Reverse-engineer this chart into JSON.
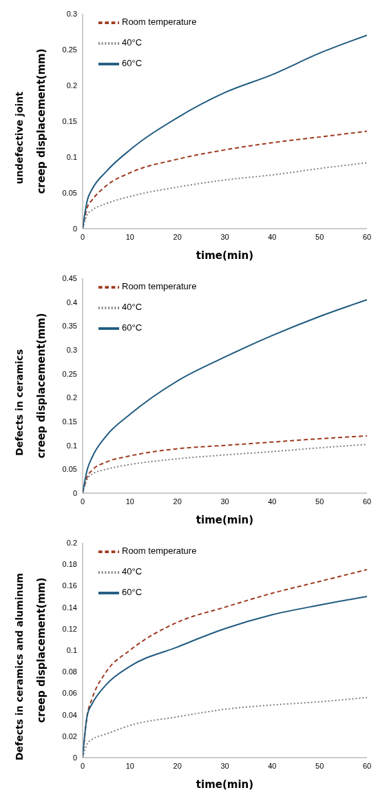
{
  "chart_data": [
    {
      "type": "line",
      "title": "undefective joint",
      "xlabel": "time(min)",
      "ylabel": "creep displacement(mm)",
      "x": [
        0,
        1,
        2,
        5,
        10,
        20,
        30,
        40,
        50,
        60
      ],
      "xlim": [
        0,
        60
      ],
      "xticks": [
        0,
        10,
        20,
        30,
        40,
        50,
        60
      ],
      "ylim": [
        0,
        0.3
      ],
      "yticks": [
        0,
        0.05,
        0.1,
        0.15,
        0.2,
        0.25,
        0.3
      ],
      "grid": false,
      "legend": "top left",
      "marker": "none",
      "series": [
        {
          "name": "Room temperature",
          "color": "#9e3a1f",
          "line_style": "dashed",
          "values": [
            0,
            0.03,
            0.04,
            0.06,
            0.078,
            0.097,
            0.11,
            0.12,
            0.128,
            0.136
          ]
        },
        {
          "name": "40°C",
          "color": "#7f7f7f",
          "line_style": "dotted",
          "values": [
            0,
            0.02,
            0.026,
            0.035,
            0.045,
            0.058,
            0.068,
            0.075,
            0.084,
            0.092
          ]
        },
        {
          "name": "60°C",
          "color": "#1f5a7f",
          "line_style": "solid",
          "values": [
            0,
            0.04,
            0.055,
            0.08,
            0.11,
            0.155,
            0.19,
            0.215,
            0.245,
            0.27
          ]
        }
      ]
    },
    {
      "type": "line",
      "title": "Defects in ceramics",
      "xlabel": "time(min)",
      "ylabel": "creep displacement(mm)",
      "x": [
        0,
        1,
        2,
        5,
        10,
        20,
        30,
        40,
        50,
        60
      ],
      "xlim": [
        0,
        60
      ],
      "xticks": [
        0,
        10,
        20,
        30,
        40,
        50,
        60
      ],
      "ylim": [
        0,
        0.45
      ],
      "yticks": [
        0,
        0.05,
        0.1,
        0.15,
        0.2,
        0.25,
        0.3,
        0.35,
        0.4,
        0.45
      ],
      "grid": false,
      "legend": "top left",
      "marker": "none",
      "series": [
        {
          "name": "Room temperature",
          "color": "#9e3a1f",
          "line_style": "dashed",
          "values": [
            0,
            0.035,
            0.048,
            0.065,
            0.078,
            0.093,
            0.1,
            0.107,
            0.114,
            0.12
          ]
        },
        {
          "name": "40°C",
          "color": "#7f7f7f",
          "line_style": "dotted",
          "values": [
            0,
            0.03,
            0.04,
            0.05,
            0.06,
            0.072,
            0.08,
            0.087,
            0.095,
            0.102
          ]
        },
        {
          "name": "60°C",
          "color": "#1f5a7f",
          "line_style": "solid",
          "values": [
            0,
            0.05,
            0.075,
            0.12,
            0.165,
            0.235,
            0.285,
            0.33,
            0.37,
            0.405
          ]
        }
      ]
    },
    {
      "type": "line",
      "title": "Defects in ceramics and aluminum",
      "xlabel": "time(min)",
      "ylabel": "creep displacement(mm)",
      "x": [
        0,
        1,
        2,
        5,
        10,
        20,
        30,
        40,
        50,
        60
      ],
      "xlim": [
        0,
        60
      ],
      "xticks": [
        0,
        10,
        20,
        30,
        40,
        50,
        60
      ],
      "ylim": [
        0,
        0.2
      ],
      "yticks": [
        0,
        0.02,
        0.04,
        0.06,
        0.08,
        0.1,
        0.12,
        0.14,
        0.16,
        0.18,
        0.2
      ],
      "grid": false,
      "legend": "top left",
      "marker": "none",
      "series": [
        {
          "name": "Room temperature",
          "color": "#9e3a1f",
          "line_style": "dashed",
          "values": [
            0,
            0.04,
            0.055,
            0.08,
            0.1,
            0.126,
            0.14,
            0.153,
            0.164,
            0.175
          ]
        },
        {
          "name": "40°C",
          "color": "#7f7f7f",
          "line_style": "dotted",
          "values": [
            0,
            0.013,
            0.017,
            0.022,
            0.03,
            0.038,
            0.045,
            0.049,
            0.052,
            0.056
          ]
        },
        {
          "name": "60°C",
          "color": "#1f5a7f",
          "line_style": "solid",
          "values": [
            0,
            0.04,
            0.05,
            0.068,
            0.085,
            0.103,
            0.12,
            0.133,
            0.142,
            0.15
          ]
        }
      ]
    }
  ]
}
